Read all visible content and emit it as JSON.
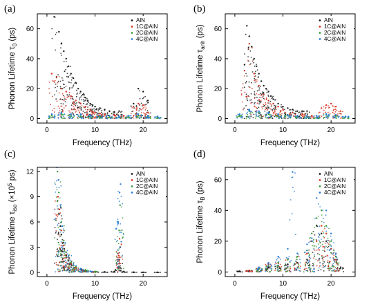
{
  "chart_data": [
    {
      "panel": "(a)",
      "type": "scatter",
      "xlabel": "Frequency (THz)",
      "ylabel_main": "Phonon Lifetime τ",
      "ylabel_sub": "0",
      "ylabel_tail": " (ps)",
      "xlim": [
        -2,
        25
      ],
      "ylim": [
        -3,
        70
      ],
      "xticks": [
        0,
        10,
        20
      ],
      "yticks": [
        0,
        20,
        40,
        60
      ],
      "legend_position": "top-right",
      "series": [
        {
          "name": "AlN",
          "color": "#1a1a1a",
          "x": [
            1.5,
            2.5,
            3.0,
            3.5,
            4.0,
            4.5,
            5.0,
            5.5,
            6.0,
            6.5,
            7.0,
            7.5,
            8.0,
            8.5,
            9.0,
            9.5,
            10.0,
            11.0,
            12.0,
            13.0,
            14.0,
            15.0,
            18.0,
            19.0,
            20.0,
            21.0
          ],
          "y": [
            68,
            58,
            50,
            45,
            40,
            35,
            30,
            27,
            24,
            20,
            18,
            16,
            14,
            12,
            10,
            9,
            8,
            7,
            6,
            5,
            4.5,
            5,
            10,
            20,
            18,
            12
          ]
        },
        {
          "name": "1C@AlN",
          "color": "#d7301f",
          "x": [
            1.0,
            2.0,
            3.0,
            4.0,
            5.0,
            6.0,
            7.0,
            8.0,
            9.0,
            10.0,
            11.0,
            12.0,
            14.0,
            16.0,
            18.0,
            19.0,
            20.0,
            21.0
          ],
          "y": [
            30,
            28,
            20,
            18,
            15,
            12,
            10,
            8,
            6,
            4,
            3.5,
            3,
            2.5,
            2,
            8,
            10,
            9,
            4
          ]
        },
        {
          "name": "2C@AlN",
          "color": "#3a9a3a",
          "x": [
            1.0,
            3.0,
            5.0,
            7.0,
            9.0,
            11.0,
            13.0,
            15.0,
            17.0,
            19.0,
            21.0,
            23.0
          ],
          "y": [
            2,
            3,
            2.5,
            2,
            1.5,
            1.5,
            1,
            1,
            1,
            2,
            1.5,
            1
          ]
        },
        {
          "name": "4C@AlN",
          "color": "#2c7fd6",
          "x": [
            1.0,
            3.0,
            5.0,
            7.0,
            9.0,
            11.0,
            13.0,
            15.0,
            17.0,
            19.0,
            21.0,
            23.0
          ],
          "y": [
            3,
            4,
            3,
            3,
            2.5,
            2,
            2,
            1.5,
            2,
            3,
            2,
            1.5
          ]
        }
      ]
    },
    {
      "panel": "(b)",
      "type": "scatter",
      "xlabel": "Frequency (THz)",
      "ylabel_main": "Phonon Lifetime τ",
      "ylabel_sub": "anh",
      "ylabel_tail": " (ps)",
      "xlim": [
        -2,
        25
      ],
      "ylim": [
        -3,
        70
      ],
      "xticks": [
        0,
        10,
        20
      ],
      "yticks": [
        0,
        20,
        40,
        60
      ],
      "legend_position": "top-right",
      "series": [
        {
          "name": "AlN",
          "color": "#1a1a1a",
          "x": [
            2.0,
            2.5,
            3.0,
            3.5,
            4.0,
            4.5,
            5.0,
            5.5,
            6.0,
            6.5,
            7.0,
            7.5,
            8.0,
            9.0,
            10.0,
            11.0,
            12.0,
            13.0,
            14.0,
            15.0
          ],
          "y": [
            36,
            62,
            55,
            48,
            40,
            35,
            30,
            25,
            22,
            20,
            18,
            15,
            13,
            10,
            8,
            7,
            6,
            5,
            5,
            5
          ]
        },
        {
          "name": "1C@AlN",
          "color": "#d7301f",
          "x": [
            2.0,
            3.0,
            4.0,
            5.0,
            6.0,
            7.0,
            8.0,
            9.0,
            10.0,
            12.0,
            14.0,
            16.0,
            18.0,
            19.0,
            20.0,
            21.0,
            22.0
          ],
          "y": [
            32,
            50,
            30,
            22,
            16,
            12,
            10,
            8,
            6,
            4,
            3,
            2,
            7,
            9,
            10,
            8,
            5
          ]
        },
        {
          "name": "2C@AlN",
          "color": "#3a9a3a",
          "x": [
            1.0,
            3.0,
            5.0,
            7.0,
            9.0,
            11.0,
            13.0,
            15.0,
            17.0,
            19.0,
            21.0,
            23.0
          ],
          "y": [
            2,
            5,
            4,
            3,
            2.5,
            2,
            1.5,
            1.5,
            1,
            2.5,
            2,
            1
          ]
        },
        {
          "name": "4C@AlN",
          "color": "#2c7fd6",
          "x": [
            1.0,
            3.0,
            5.0,
            7.0,
            9.0,
            11.0,
            13.0,
            15.0,
            17.0,
            19.0,
            21.0,
            23.0
          ],
          "y": [
            3,
            6,
            5,
            4,
            3,
            2.5,
            2,
            2,
            2,
            3,
            2.5,
            1.5
          ]
        }
      ]
    },
    {
      "panel": "(c)",
      "type": "scatter",
      "xlabel": "Frequency (THz)",
      "ylabel_main": "Phonon Lifetime τ",
      "ylabel_sub": "iso",
      "ylabel_tail": " (×10",
      "ylabel_exp": "5",
      "ylabel_end": " ps)",
      "xlim": [
        -2,
        25
      ],
      "ylim": [
        -0.5,
        12.5
      ],
      "xticks": [
        0,
        10,
        20
      ],
      "yticks": [
        0,
        3,
        6,
        9,
        12
      ],
      "legend_position": "top-right",
      "series": [
        {
          "name": "AlN",
          "color": "#1a1a1a",
          "x": [
            2.2,
            2.5,
            2.8,
            3.0,
            3.3,
            3.6,
            4.0,
            4.5,
            5.0,
            6.0,
            7.0,
            8.0,
            10.0,
            12.0,
            14.0,
            14.8,
            15.0,
            15.2,
            16.0,
            18.0,
            20.0,
            23.0
          ],
          "y": [
            8.5,
            7.0,
            5.5,
            4.5,
            3.5,
            2.8,
            2.0,
            1.4,
            1.0,
            0.6,
            0.4,
            0.25,
            0.1,
            0.05,
            0.1,
            0.6,
            1.5,
            3.0,
            0.1,
            0.02,
            0.01,
            0.01
          ]
        },
        {
          "name": "1C@AlN",
          "color": "#d7301f",
          "x": [
            2.3,
            2.6,
            3.0,
            3.5,
            4.0,
            5.0,
            6.0,
            8.0,
            10.0,
            14.9,
            15.1
          ],
          "y": [
            9.0,
            7.5,
            5.0,
            3.2,
            2.1,
            1.1,
            0.6,
            0.25,
            0.1,
            2.0,
            4.0
          ]
        },
        {
          "name": "2C@AlN",
          "color": "#3a9a3a",
          "x": [
            2.2,
            2.5,
            3.0,
            3.5,
            4.0,
            5.0,
            6.0,
            8.0,
            10.0,
            15.0,
            15.2
          ],
          "y": [
            12.0,
            9.5,
            6.0,
            3.8,
            2.4,
            1.2,
            0.7,
            0.3,
            0.1,
            5.0,
            8.0
          ]
        },
        {
          "name": "4C@AlN",
          "color": "#2c7fd6",
          "x": [
            2.1,
            2.4,
            2.8,
            3.2,
            3.8,
            4.5,
            5.5,
            7.0,
            9.0,
            14.8,
            15.1,
            15.3
          ],
          "y": [
            12.5,
            11.0,
            8.0,
            5.5,
            3.5,
            2.0,
            1.0,
            0.45,
            0.15,
            6.0,
            9.5,
            10.5
          ]
        }
      ]
    },
    {
      "panel": "(d)",
      "type": "scatter",
      "xlabel": "Frequency (THz)",
      "ylabel_main": "Phonon Lifetime τ",
      "ylabel_sub": "B",
      "ylabel_tail": " (ps)",
      "xlim": [
        -2,
        25
      ],
      "ylim": [
        -3,
        68
      ],
      "xticks": [
        0,
        10,
        20
      ],
      "yticks": [
        0,
        20,
        40,
        60
      ],
      "legend_position": "top-right",
      "series": [
        {
          "name": "AlN",
          "color": "#1a1a1a",
          "x": [
            1.0,
            3.0,
            5.0,
            7.0,
            9.0,
            11.0,
            13.0,
            15.0,
            16.0,
            17.0,
            18.0,
            19.0,
            20.0,
            21.0,
            22.0
          ],
          "y": [
            0.5,
            1,
            2,
            3,
            4,
            5,
            6,
            8,
            20,
            30,
            25,
            20,
            15,
            10,
            3
          ]
        },
        {
          "name": "1C@AlN",
          "color": "#d7301f",
          "x": [
            3.0,
            5.0,
            7.0,
            9.0,
            11.0,
            13.0,
            15.0,
            17.0,
            18.0,
            19.0,
            20.0,
            21.0
          ],
          "y": [
            1,
            3,
            5,
            6,
            8,
            10,
            12,
            20,
            30,
            25,
            15,
            8
          ]
        },
        {
          "name": "2C@AlN",
          "color": "#3a9a3a",
          "x": [
            5.0,
            7.0,
            9.0,
            11.0,
            13.0,
            15.0,
            16.0,
            17.0,
            18.0,
            19.0,
            20.0,
            21.0
          ],
          "y": [
            2,
            4,
            6,
            8,
            10,
            14,
            25,
            35,
            40,
            30,
            20,
            10
          ]
        },
        {
          "name": "4C@AlN",
          "color": "#2c7fd6",
          "x": [
            5.0,
            7.0,
            9.0,
            11.0,
            12.0,
            13.0,
            15.0,
            16.0,
            17.0,
            18.0,
            19.0,
            20.0,
            21.0
          ],
          "y": [
            3,
            6,
            10,
            15,
            65,
            12,
            18,
            22,
            48,
            55,
            40,
            25,
            12
          ]
        }
      ]
    }
  ]
}
